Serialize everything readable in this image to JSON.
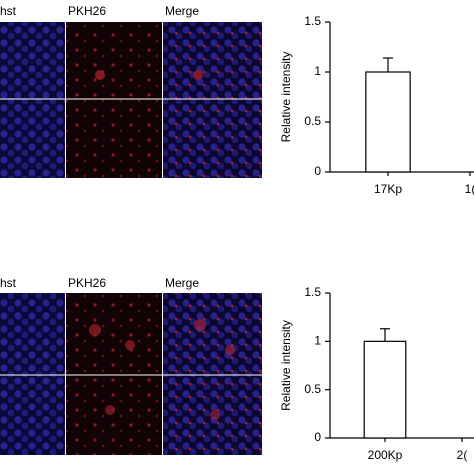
{
  "panels": [
    {
      "labels": [
        "hst",
        "PKH26",
        "Merge"
      ]
    },
    {
      "labels": [
        "hst",
        "PKH26",
        "Merge"
      ]
    }
  ],
  "chart_data": [
    {
      "type": "bar",
      "ylabel": "Relative intensity",
      "categories": [
        "17Kp",
        "1("
      ],
      "values": [
        1,
        null
      ],
      "errors": [
        0.14,
        null
      ],
      "color": "#ffffff",
      "ylim": [
        0,
        1.5
      ],
      "yticks": [
        0,
        0.5,
        1,
        1.5
      ]
    },
    {
      "type": "bar",
      "ylabel": "Relative intensity",
      "categories": [
        "200Kp",
        "2("
      ],
      "values": [
        1,
        null
      ],
      "errors": [
        0.13,
        null
      ],
      "color": "#ffffff",
      "ylim": [
        0,
        1.5
      ],
      "yticks": [
        0,
        0.5,
        1,
        1.5
      ]
    }
  ]
}
